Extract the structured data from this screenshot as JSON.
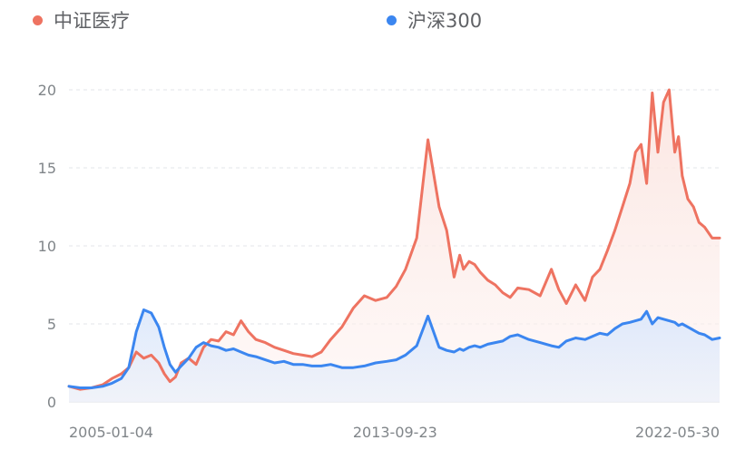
{
  "legend": [
    {
      "label": "中证医疗",
      "color": "#ee7361"
    },
    {
      "label": "沪深300",
      "color": "#3b86f0"
    }
  ],
  "chart_data": {
    "type": "area",
    "title": "",
    "xlabel": "",
    "ylabel": "",
    "ylim": [
      0,
      20
    ],
    "yticks": [
      "0",
      "5",
      "10",
      "15",
      "20"
    ],
    "xticks": [
      "2005-01-04",
      "2013-09-23",
      "2022-05-30"
    ],
    "grid": "horizontal dashed",
    "legend_position": "top",
    "x": [
      2005.0,
      2005.3,
      2005.6,
      2005.9,
      2006.15,
      2006.4,
      2006.6,
      2006.8,
      2007.0,
      2007.2,
      2007.4,
      2007.55,
      2007.7,
      2007.85,
      2008.0,
      2008.2,
      2008.4,
      2008.6,
      2008.8,
      2009.0,
      2009.2,
      2009.4,
      2009.6,
      2009.8,
      2010.0,
      2010.25,
      2010.5,
      2010.75,
      2011.0,
      2011.25,
      2011.5,
      2011.75,
      2012.0,
      2012.3,
      2012.6,
      2012.9,
      2013.2,
      2013.5,
      2013.75,
      2014.0,
      2014.3,
      2014.6,
      2014.9,
      2015.1,
      2015.3,
      2015.45,
      2015.55,
      2015.7,
      2015.85,
      2016.0,
      2016.2,
      2016.4,
      2016.6,
      2016.8,
      2017.0,
      2017.3,
      2017.6,
      2017.9,
      2018.1,
      2018.3,
      2018.55,
      2018.8,
      2019.0,
      2019.2,
      2019.4,
      2019.6,
      2019.8,
      2020.0,
      2020.15,
      2020.3,
      2020.45,
      2020.6,
      2020.75,
      2020.9,
      2021.05,
      2021.2,
      2021.3,
      2021.4,
      2021.55,
      2021.7,
      2021.85,
      2022.0,
      2022.2,
      2022.4
    ],
    "series": [
      {
        "name": "中证医疗",
        "color": "#ee7361",
        "values": [
          1.0,
          0.8,
          0.9,
          1.1,
          1.5,
          1.8,
          2.2,
          3.2,
          2.8,
          3.0,
          2.5,
          1.8,
          1.3,
          1.6,
          2.5,
          2.8,
          2.4,
          3.5,
          4.0,
          3.9,
          4.5,
          4.3,
          5.2,
          4.5,
          4.0,
          3.8,
          3.5,
          3.3,
          3.1,
          3.0,
          2.9,
          3.2,
          4.0,
          4.8,
          6.0,
          6.8,
          6.5,
          6.7,
          7.4,
          8.5,
          10.5,
          16.8,
          12.5,
          11.0,
          8.0,
          9.4,
          8.5,
          9.0,
          8.8,
          8.3,
          7.8,
          7.5,
          7.0,
          6.7,
          7.3,
          7.2,
          6.8,
          8.5,
          7.2,
          6.3,
          7.5,
          6.5,
          8.0,
          8.5,
          9.7,
          11.0,
          12.5,
          14.0,
          16.0,
          16.5,
          14.0,
          19.8,
          16.0,
          19.2,
          20.0,
          16.0,
          17.0,
          14.5,
          13.0,
          12.5,
          11.5,
          11.2,
          10.5,
          10.5
        ]
      },
      {
        "name": "沪深300",
        "color": "#3b86f0",
        "values": [
          1.0,
          0.9,
          0.9,
          1.0,
          1.2,
          1.5,
          2.2,
          4.5,
          5.9,
          5.7,
          4.8,
          3.5,
          2.4,
          1.9,
          2.3,
          2.8,
          3.5,
          3.8,
          3.6,
          3.5,
          3.3,
          3.4,
          3.2,
          3.0,
          2.9,
          2.7,
          2.5,
          2.6,
          2.4,
          2.4,
          2.3,
          2.3,
          2.4,
          2.2,
          2.2,
          2.3,
          2.5,
          2.6,
          2.7,
          3.0,
          3.6,
          5.5,
          3.5,
          3.3,
          3.2,
          3.4,
          3.3,
          3.5,
          3.6,
          3.5,
          3.7,
          3.8,
          3.9,
          4.2,
          4.3,
          4.0,
          3.8,
          3.6,
          3.5,
          3.9,
          4.1,
          4.0,
          4.2,
          4.4,
          4.3,
          4.7,
          5.0,
          5.1,
          5.2,
          5.3,
          5.8,
          5.0,
          5.4,
          5.3,
          5.2,
          5.1,
          4.9,
          5.0,
          4.8,
          4.6,
          4.4,
          4.3,
          4.0,
          4.1
        ]
      }
    ]
  }
}
